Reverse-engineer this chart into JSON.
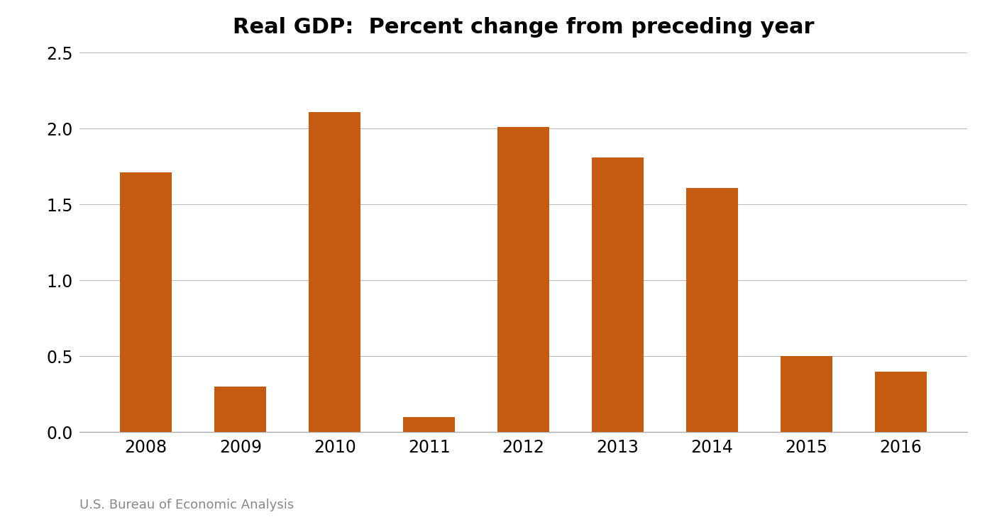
{
  "title": "Real GDP:  Percent change from preceding year",
  "categories": [
    "2008",
    "2009",
    "2010",
    "2011",
    "2012",
    "2013",
    "2014",
    "2015",
    "2016"
  ],
  "values": [
    1.71,
    0.3,
    2.11,
    0.1,
    2.01,
    1.81,
    1.61,
    0.5,
    0.4
  ],
  "bar_color": "#C55A11",
  "background_color": "#FFFFFF",
  "ylim": [
    0,
    2.5
  ],
  "yticks": [
    0.0,
    0.5,
    1.0,
    1.5,
    2.0,
    2.5
  ],
  "ytick_labels": [
    "0.0",
    "0.5",
    "1.0",
    "1.5",
    "2.0",
    "2.5"
  ],
  "source_text": "U.S. Bureau of Economic Analysis",
  "title_fontsize": 22,
  "tick_fontsize": 17,
  "source_fontsize": 13,
  "grid_color": "#BBBBBB",
  "spine_color": "#AAAAAA",
  "bar_width": 0.55
}
